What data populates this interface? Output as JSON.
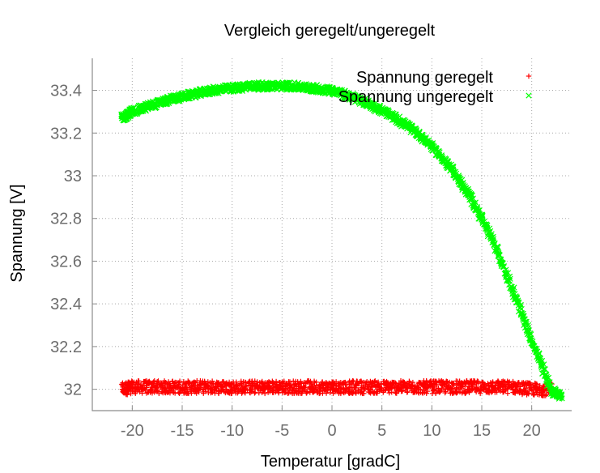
{
  "chart_data": {
    "type": "scatter",
    "title": "Vergleich geregelt/ungeregelt",
    "xlabel": "Temperatur [gradC]",
    "ylabel": "Spannung [V]",
    "xlim": [
      -24,
      24
    ],
    "ylim": [
      31.9,
      33.55
    ],
    "xticks": [
      -20,
      -15,
      -10,
      -5,
      0,
      5,
      10,
      15,
      20
    ],
    "yticks": [
      32,
      32.2,
      32.4,
      32.6,
      32.8,
      33,
      33.2,
      33.4
    ],
    "xtick_labels": [
      "-20",
      "-15",
      "-10",
      "-5",
      "0",
      "5",
      "10",
      "15",
      "20"
    ],
    "ytick_labels": [
      "32",
      "32.2",
      "32.4",
      "32.6",
      "32.8",
      "33",
      "33.2",
      "33.4"
    ],
    "grid": true,
    "legend_position": "top-right",
    "series": [
      {
        "name": "Spannung geregelt",
        "color": "#ff0000",
        "marker": "plus",
        "x": [
          -21,
          -20,
          -18,
          -16,
          -14,
          -12,
          -10,
          -8,
          -6,
          -4,
          -2,
          0,
          2,
          4,
          6,
          8,
          10,
          12,
          14,
          16,
          18,
          20,
          22
        ],
        "y": [
          32.0,
          32.01,
          32.01,
          32.01,
          32.01,
          32.01,
          32.01,
          32.01,
          32.01,
          32.01,
          32.01,
          32.01,
          32.01,
          32.01,
          32.01,
          32.01,
          32.01,
          32.01,
          32.01,
          32.01,
          32.01,
          32.0,
          32.0
        ]
      },
      {
        "name": "Spannung ungeregelt",
        "color": "#00ff00",
        "marker": "cross",
        "x": [
          -21,
          -20,
          -18,
          -16,
          -14,
          -12,
          -10,
          -8,
          -6,
          -4,
          -2,
          0,
          2,
          4,
          6,
          8,
          10,
          12,
          14,
          16,
          18,
          20,
          22,
          23
        ],
        "y": [
          33.27,
          33.3,
          33.33,
          33.36,
          33.38,
          33.4,
          33.41,
          33.42,
          33.42,
          33.42,
          33.41,
          33.4,
          33.37,
          33.33,
          33.28,
          33.22,
          33.14,
          33.03,
          32.89,
          32.71,
          32.48,
          32.23,
          31.99,
          31.97
        ]
      }
    ]
  }
}
